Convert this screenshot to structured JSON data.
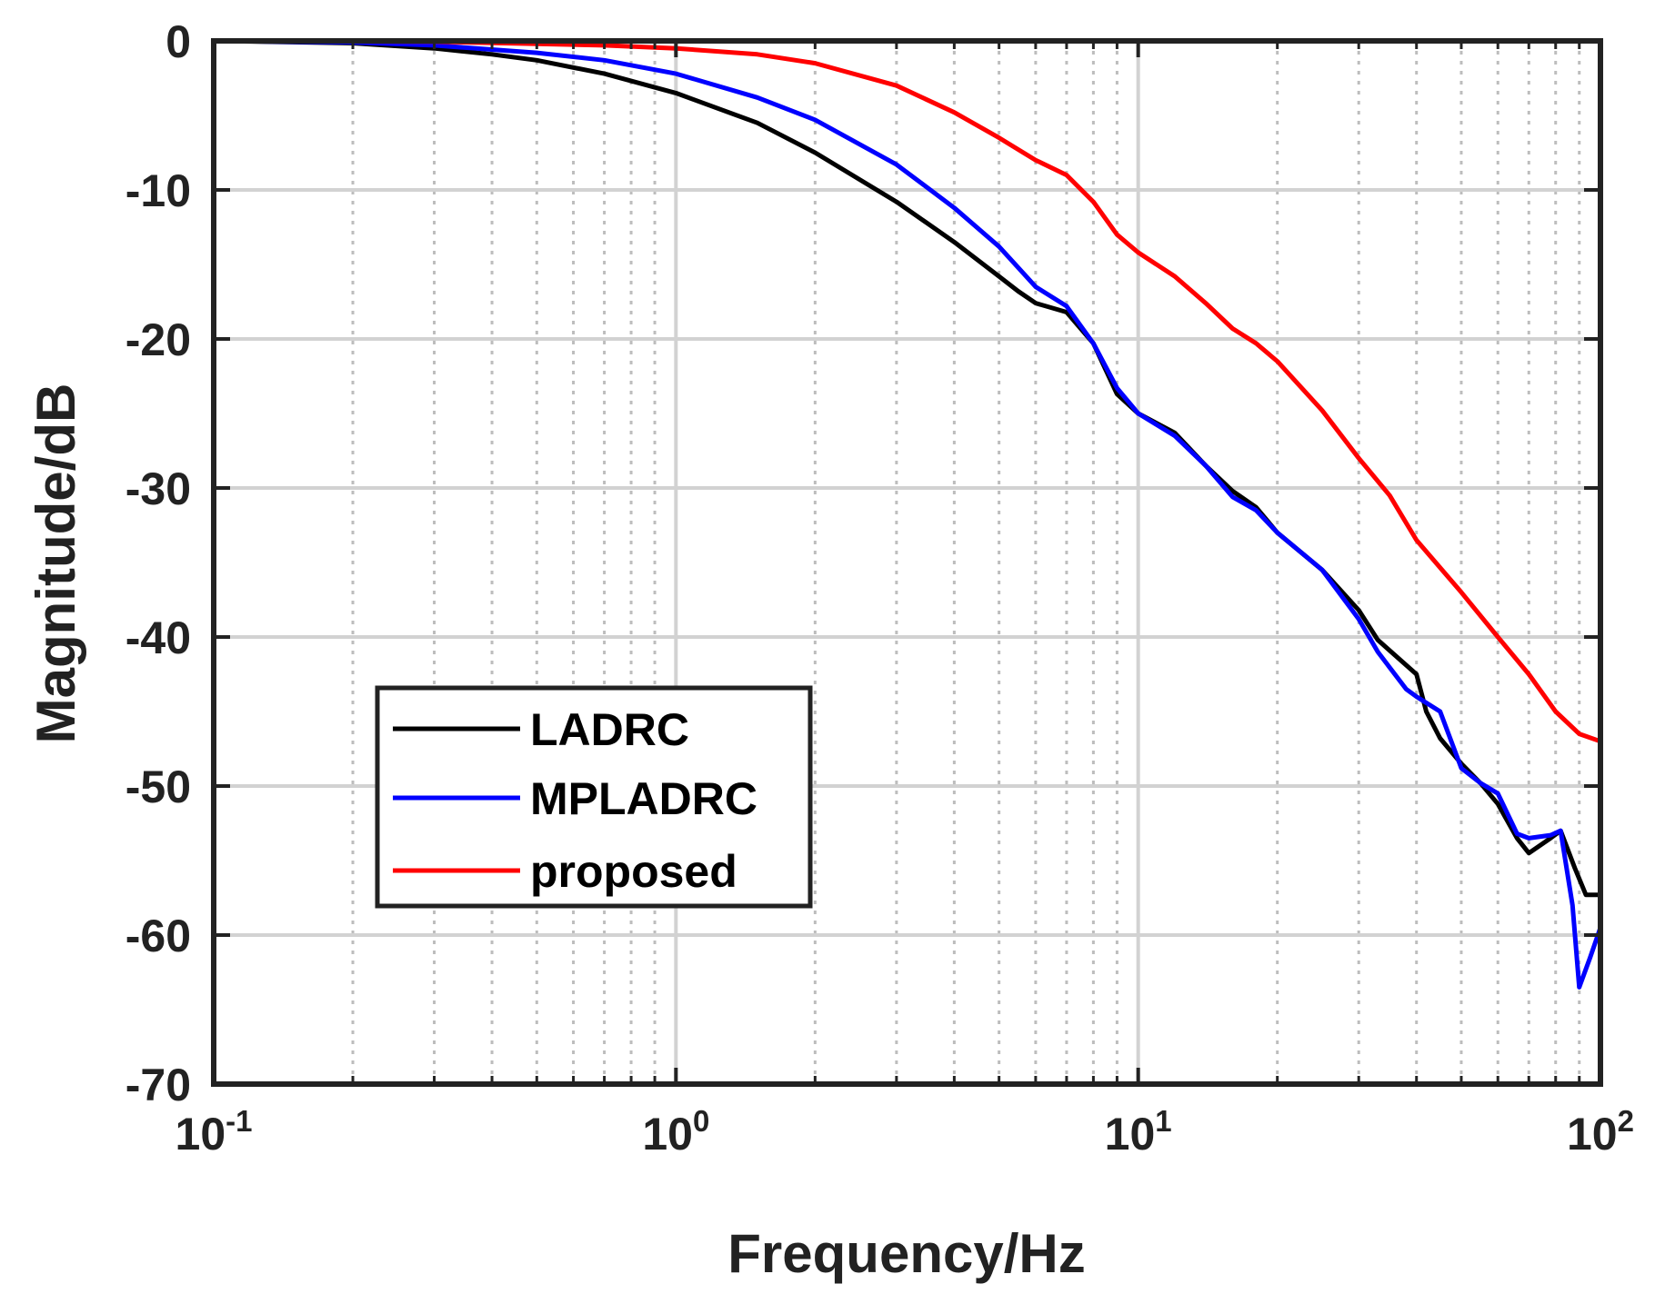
{
  "chart_data": {
    "type": "line",
    "title": "",
    "xlabel": "Frequency/Hz",
    "ylabel": "Magnitude/dB",
    "xscale": "log",
    "xlim": [
      0.1,
      100
    ],
    "ylim": [
      -70,
      0
    ],
    "grid": true,
    "legend_position": "lower-left",
    "x_ticks": [
      {
        "base": "10",
        "exp": "-1",
        "value": 0.1
      },
      {
        "base": "10",
        "exp": "0",
        "value": 1
      },
      {
        "base": "10",
        "exp": "1",
        "value": 10
      },
      {
        "base": "10",
        "exp": "2",
        "value": 100
      }
    ],
    "y_ticks": [
      {
        "label": "0",
        "value": 0
      },
      {
        "label": "-10",
        "value": -10
      },
      {
        "label": "-20",
        "value": -20
      },
      {
        "label": "-30",
        "value": -30
      },
      {
        "label": "-40",
        "value": -40
      },
      {
        "label": "-50",
        "value": -50
      },
      {
        "label": "-60",
        "value": -60
      },
      {
        "label": "-70",
        "value": -70
      }
    ],
    "series": [
      {
        "name": "LADRC",
        "color": "#000000",
        "points": [
          [
            0.1,
            0
          ],
          [
            0.2,
            -0.15
          ],
          [
            0.3,
            -0.5
          ],
          [
            0.4,
            -0.9
          ],
          [
            0.5,
            -1.3
          ],
          [
            0.7,
            -2.2
          ],
          [
            1,
            -3.5
          ],
          [
            1.5,
            -5.5
          ],
          [
            2,
            -7.5
          ],
          [
            3,
            -10.8
          ],
          [
            4,
            -13.5
          ],
          [
            5,
            -15.8
          ],
          [
            5.5,
            -16.8
          ],
          [
            6,
            -17.6
          ],
          [
            7,
            -18.2
          ],
          [
            8,
            -20.3
          ],
          [
            9,
            -23.7
          ],
          [
            10,
            -25
          ],
          [
            12,
            -26.3
          ],
          [
            14,
            -28.5
          ],
          [
            16,
            -30.2
          ],
          [
            18,
            -31.3
          ],
          [
            20,
            -33
          ],
          [
            25,
            -35.5
          ],
          [
            30,
            -38.2
          ],
          [
            33,
            -40.2
          ],
          [
            40,
            -42.5
          ],
          [
            42,
            -45
          ],
          [
            45,
            -46.8
          ],
          [
            50,
            -48.5
          ],
          [
            55,
            -49.8
          ],
          [
            60,
            -51.2
          ],
          [
            66,
            -53.5
          ],
          [
            70,
            -54.5
          ],
          [
            78,
            -53.5
          ],
          [
            82,
            -53
          ],
          [
            88,
            -55.5
          ],
          [
            93,
            -57.3
          ],
          [
            100,
            -57.3
          ]
        ]
      },
      {
        "name": "MPLADRC",
        "color": "#0000ff",
        "points": [
          [
            0.1,
            0
          ],
          [
            0.2,
            -0.1
          ],
          [
            0.3,
            -0.3
          ],
          [
            0.5,
            -0.8
          ],
          [
            0.7,
            -1.3
          ],
          [
            1,
            -2.2
          ],
          [
            1.5,
            -3.8
          ],
          [
            2,
            -5.3
          ],
          [
            3,
            -8.3
          ],
          [
            4,
            -11.2
          ],
          [
            5,
            -13.8
          ],
          [
            6,
            -16.5
          ],
          [
            7,
            -17.8
          ],
          [
            8,
            -20.3
          ],
          [
            9,
            -23.3
          ],
          [
            10,
            -25
          ],
          [
            12,
            -26.5
          ],
          [
            14,
            -28.5
          ],
          [
            16,
            -30.6
          ],
          [
            18,
            -31.5
          ],
          [
            20,
            -33
          ],
          [
            25,
            -35.5
          ],
          [
            30,
            -38.8
          ],
          [
            33,
            -41
          ],
          [
            38,
            -43.5
          ],
          [
            40,
            -44
          ],
          [
            45,
            -45
          ],
          [
            50,
            -48.8
          ],
          [
            55,
            -49.8
          ],
          [
            60,
            -50.5
          ],
          [
            66,
            -53.2
          ],
          [
            70,
            -53.5
          ],
          [
            78,
            -53.3
          ],
          [
            82,
            -53
          ],
          [
            87,
            -58
          ],
          [
            90,
            -63.5
          ],
          [
            95,
            -61.5
          ],
          [
            100,
            -59.5
          ]
        ]
      },
      {
        "name": "proposed",
        "color": "#ff0000",
        "points": [
          [
            0.1,
            0
          ],
          [
            0.3,
            -0.05
          ],
          [
            0.5,
            -0.2
          ],
          [
            0.7,
            -0.3
          ],
          [
            1,
            -0.5
          ],
          [
            1.5,
            -0.9
          ],
          [
            2,
            -1.5
          ],
          [
            3,
            -3
          ],
          [
            4,
            -4.8
          ],
          [
            5,
            -6.5
          ],
          [
            6,
            -8
          ],
          [
            7,
            -9
          ],
          [
            8,
            -10.8
          ],
          [
            9,
            -13
          ],
          [
            10,
            -14.2
          ],
          [
            12,
            -15.8
          ],
          [
            14,
            -17.6
          ],
          [
            16,
            -19.3
          ],
          [
            18,
            -20.3
          ],
          [
            20,
            -21.5
          ],
          [
            25,
            -24.8
          ],
          [
            30,
            -28
          ],
          [
            35,
            -30.5
          ],
          [
            40,
            -33.5
          ],
          [
            50,
            -37
          ],
          [
            60,
            -40
          ],
          [
            70,
            -42.5
          ],
          [
            80,
            -45
          ],
          [
            90,
            -46.5
          ],
          [
            100,
            -47
          ]
        ]
      }
    ]
  }
}
